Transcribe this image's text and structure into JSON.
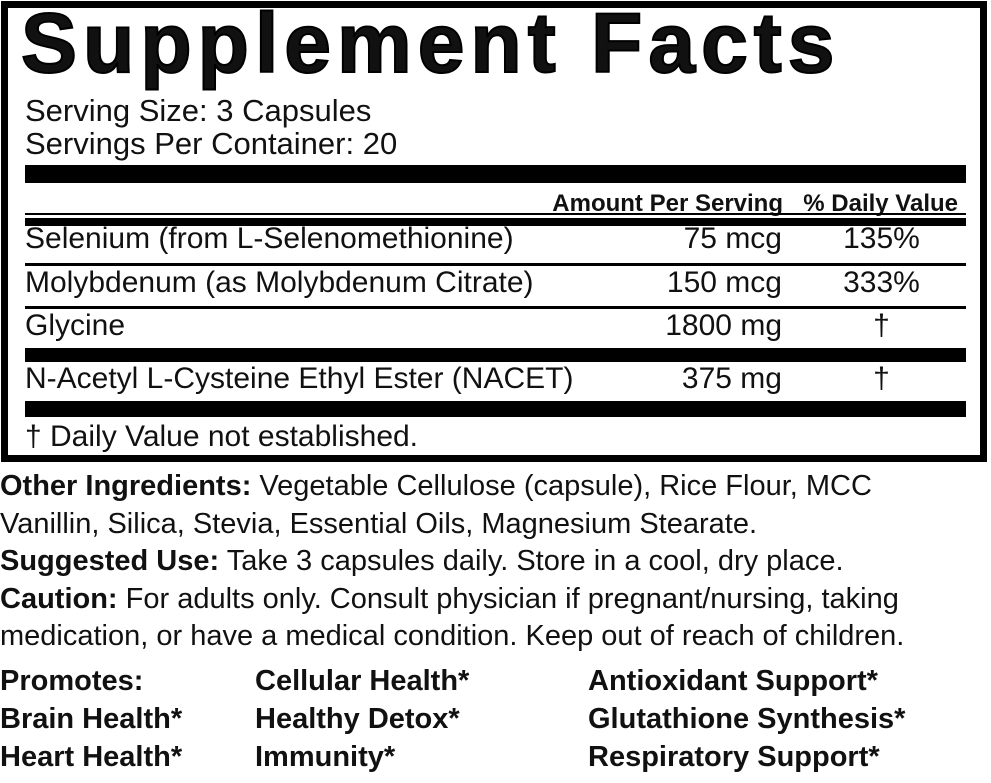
{
  "title": "Supplement Facts",
  "serving": {
    "serving_size": "Serving Size: 3 Capsules",
    "servings_per_container": "Servings Per Container: 20"
  },
  "table": {
    "headers": {
      "amount": "Amount Per Serving",
      "daily_value": "% Daily Value"
    },
    "rows": [
      {
        "name": "Selenium (from L-Selenomethionine)",
        "amount": "75 mcg",
        "daily_value": "135%"
      },
      {
        "name": "Molybdenum (as Molybdenum Citrate)",
        "amount": "150 mcg",
        "daily_value": "333%"
      },
      {
        "name": "Glycine",
        "amount": "1800 mg",
        "daily_value": "†"
      },
      {
        "name": "N-Acetyl L-Cysteine Ethyl Ester (NACET)",
        "amount": "375 mg",
        "daily_value": "†"
      }
    ],
    "footnote": "† Daily Value not established."
  },
  "info": {
    "other_ingredients_label": "Other Ingredients:",
    "other_ingredients_line1_rest": " Vegetable Cellulose (capsule), Rice Flour, MCC",
    "other_ingredients_line2": "Vanillin, Silica, Stevia, Essential Oils, Magnesium Stearate.",
    "suggested_use_label": "Suggested Use:",
    "suggested_use_rest": " Take 3 capsules daily. Store in a cool, dry place.",
    "caution_label": "Caution:",
    "caution_line1_rest": " For adults only. Consult physician if pregnant/nursing, taking",
    "caution_line2": "medication, or have a medical condition. Keep out of reach of children."
  },
  "promotes": {
    "rows": [
      [
        "Promotes:",
        "Cellular Health*",
        "Antioxidant Support*"
      ],
      [
        "Brain Health*",
        "Healthy Detox*",
        "Glutathione Synthesis*"
      ],
      [
        "Heart Health*",
        "Immunity*",
        "Respiratory Support*"
      ]
    ]
  },
  "colors": {
    "text": "#111111",
    "background": "#ffffff",
    "rule": "#000000"
  }
}
